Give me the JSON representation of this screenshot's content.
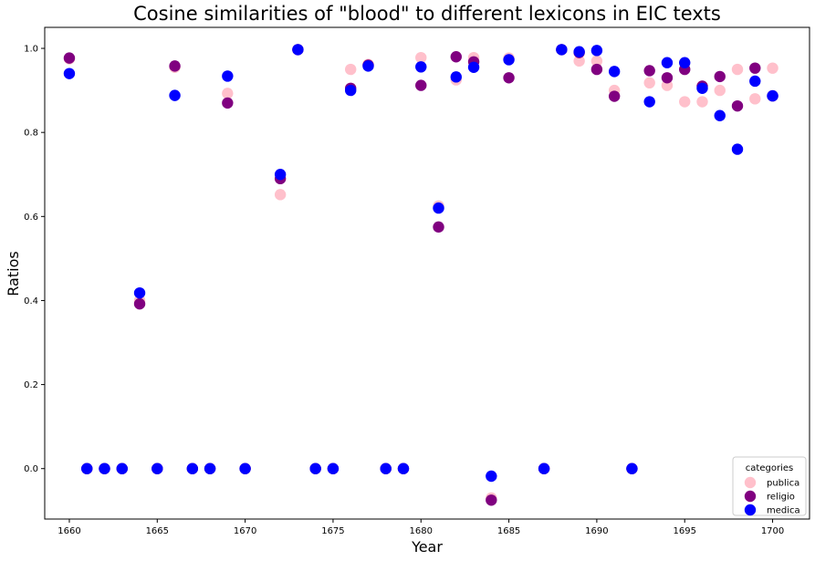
{
  "chart_data": {
    "type": "scatter",
    "title": "Cosine similarities of \"blood\" to different lexicons in EIC texts",
    "xlabel": "Year",
    "ylabel": "Ratios",
    "xlim": [
      1658.6,
      1702.1
    ],
    "ylim": [
      -0.12,
      1.05
    ],
    "xticks": [
      1660,
      1665,
      1670,
      1675,
      1680,
      1685,
      1690,
      1695,
      1700
    ],
    "yticks": [
      0.0,
      0.2,
      0.4,
      0.6,
      0.8,
      1.0
    ],
    "ytick_labels": [
      "0.0",
      "0.2",
      "0.4",
      "0.6",
      "0.8",
      "1.0"
    ],
    "grid": false,
    "legend": {
      "title": "categories",
      "placement": "lower-right"
    },
    "series": [
      {
        "name": "publica",
        "color": "#ffc0cb",
        "points": [
          [
            1660,
            0.975
          ],
          [
            1661,
            0.0
          ],
          [
            1662,
            0.0
          ],
          [
            1663,
            0.0
          ],
          [
            1664,
            0.4
          ],
          [
            1665,
            0.0
          ],
          [
            1666,
            0.955
          ],
          [
            1667,
            0.0
          ],
          [
            1668,
            0.0
          ],
          [
            1669,
            0.893
          ],
          [
            1670,
            0.0
          ],
          [
            1672,
            0.652
          ],
          [
            1673,
            0.997
          ],
          [
            1674,
            0.0
          ],
          [
            1675,
            0.0
          ],
          [
            1676,
            0.95
          ],
          [
            1677,
            0.962
          ],
          [
            1678,
            0.0
          ],
          [
            1679,
            0.0
          ],
          [
            1680,
            0.978
          ],
          [
            1681,
            0.625
          ],
          [
            1682,
            0.925
          ],
          [
            1683,
            0.978
          ],
          [
            1684,
            -0.07
          ],
          [
            1685,
            0.977
          ],
          [
            1687,
            0.0
          ],
          [
            1688,
            0.997
          ],
          [
            1689,
            0.97
          ],
          [
            1690,
            0.97
          ],
          [
            1691,
            0.9
          ],
          [
            1692,
            0.0
          ],
          [
            1693,
            0.918
          ],
          [
            1694,
            0.912
          ],
          [
            1695,
            0.873
          ],
          [
            1696,
            0.873
          ],
          [
            1697,
            0.9
          ],
          [
            1698,
            0.95
          ],
          [
            1699,
            0.88
          ],
          [
            1700,
            0.953
          ]
        ]
      },
      {
        "name": "religio",
        "color": "#800080",
        "points": [
          [
            1660,
            0.977
          ],
          [
            1661,
            0.0
          ],
          [
            1662,
            0.0
          ],
          [
            1663,
            0.0
          ],
          [
            1664,
            0.392
          ],
          [
            1665,
            0.0
          ],
          [
            1666,
            0.958
          ],
          [
            1667,
            0.0
          ],
          [
            1668,
            0.0
          ],
          [
            1669,
            0.87
          ],
          [
            1670,
            0.0
          ],
          [
            1672,
            0.69
          ],
          [
            1673,
            0.997
          ],
          [
            1674,
            0.0
          ],
          [
            1675,
            0.0
          ],
          [
            1676,
            0.905
          ],
          [
            1677,
            0.96
          ],
          [
            1678,
            0.0
          ],
          [
            1679,
            0.0
          ],
          [
            1680,
            0.912
          ],
          [
            1681,
            0.575
          ],
          [
            1682,
            0.98
          ],
          [
            1683,
            0.968
          ],
          [
            1684,
            -0.075
          ],
          [
            1685,
            0.93
          ],
          [
            1687,
            0.0
          ],
          [
            1688,
            0.997
          ],
          [
            1689,
            0.99
          ],
          [
            1690,
            0.95
          ],
          [
            1691,
            0.886
          ],
          [
            1692,
            0.0
          ],
          [
            1693,
            0.947
          ],
          [
            1694,
            0.93
          ],
          [
            1695,
            0.95
          ],
          [
            1696,
            0.91
          ],
          [
            1697,
            0.933
          ],
          [
            1698,
            0.863
          ],
          [
            1699,
            0.953
          ],
          [
            1700,
            0.887
          ]
        ]
      },
      {
        "name": "medica",
        "color": "#0000ff",
        "points": [
          [
            1660,
            0.94
          ],
          [
            1661,
            0.0
          ],
          [
            1662,
            0.0
          ],
          [
            1663,
            0.0
          ],
          [
            1664,
            0.418
          ],
          [
            1665,
            0.0
          ],
          [
            1666,
            0.888
          ],
          [
            1667,
            0.0
          ],
          [
            1668,
            0.0
          ],
          [
            1669,
            0.934
          ],
          [
            1670,
            0.0
          ],
          [
            1672,
            0.7
          ],
          [
            1673,
            0.997
          ],
          [
            1674,
            0.0
          ],
          [
            1675,
            0.0
          ],
          [
            1676,
            0.9
          ],
          [
            1677,
            0.958
          ],
          [
            1678,
            0.0
          ],
          [
            1679,
            0.0
          ],
          [
            1680,
            0.956
          ],
          [
            1681,
            0.62
          ],
          [
            1682,
            0.932
          ],
          [
            1683,
            0.955
          ],
          [
            1684,
            -0.018
          ],
          [
            1685,
            0.973
          ],
          [
            1687,
            0.0
          ],
          [
            1688,
            0.997
          ],
          [
            1689,
            0.992
          ],
          [
            1690,
            0.995
          ],
          [
            1691,
            0.945
          ],
          [
            1692,
            0.0
          ],
          [
            1693,
            0.873
          ],
          [
            1694,
            0.966
          ],
          [
            1695,
            0.966
          ],
          [
            1696,
            0.905
          ],
          [
            1697,
            0.84
          ],
          [
            1698,
            0.76
          ],
          [
            1699,
            0.922
          ],
          [
            1700,
            0.887
          ]
        ]
      }
    ]
  }
}
